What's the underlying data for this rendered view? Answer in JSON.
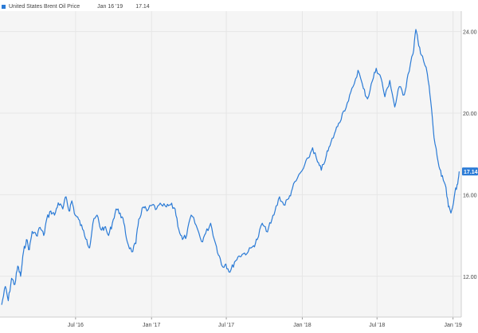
{
  "legend": {
    "series_name": "United States Brent Oil Price",
    "date": "Jan 16 '19",
    "value": "17.14"
  },
  "colors": {
    "line": "#2b7bd6",
    "plot_background": "#f5f5f5",
    "grid": "#e6e6e6",
    "axis_text": "#444444",
    "current_label_bg": "#2b7bd6"
  },
  "chart_data": {
    "type": "line",
    "title": "",
    "xlabel": "",
    "ylabel": "",
    "ylim": [
      10,
      25
    ],
    "yticks": [
      "12.00",
      "16.00",
      "20.00",
      "24.00"
    ],
    "xticks": [
      {
        "label": "Jul '16",
        "date": "2016-07-01"
      },
      {
        "label": "Jan '17",
        "date": "2017-01-01"
      },
      {
        "label": "Jul '17",
        "date": "2017-07-01"
      },
      {
        "label": "Jan '18",
        "date": "2018-01-01"
      },
      {
        "label": "Jul '18",
        "date": "2018-07-01"
      },
      {
        "label": "Jan '19",
        "date": "2019-01-01"
      }
    ],
    "grid": true,
    "current_value_label": "17.14",
    "series": [
      {
        "name": "United States Brent Oil Price",
        "points": [
          [
            "2016-01-04",
            10.6
          ],
          [
            "2016-01-13",
            11.5
          ],
          [
            "2016-01-20",
            10.8
          ],
          [
            "2016-01-28",
            11.9
          ],
          [
            "2016-02-05",
            11.6
          ],
          [
            "2016-02-12",
            12.5
          ],
          [
            "2016-02-19",
            12.0
          ],
          [
            "2016-02-26",
            13.2
          ],
          [
            "2016-03-04",
            13.8
          ],
          [
            "2016-03-11",
            13.3
          ],
          [
            "2016-03-18",
            14.2
          ],
          [
            "2016-03-28",
            14.0
          ],
          [
            "2016-04-06",
            14.4
          ],
          [
            "2016-04-15",
            14.0
          ],
          [
            "2016-04-22",
            14.8
          ],
          [
            "2016-05-02",
            15.2
          ],
          [
            "2016-05-11",
            15.0
          ],
          [
            "2016-05-20",
            15.6
          ],
          [
            "2016-05-31",
            15.3
          ],
          [
            "2016-06-08",
            15.9
          ],
          [
            "2016-06-15",
            15.2
          ],
          [
            "2016-06-22",
            15.7
          ],
          [
            "2016-06-30",
            15.0
          ],
          [
            "2016-07-08",
            14.8
          ],
          [
            "2016-07-18",
            14.3
          ],
          [
            "2016-07-28",
            13.8
          ],
          [
            "2016-08-04",
            13.4
          ],
          [
            "2016-08-12",
            14.6
          ],
          [
            "2016-08-22",
            15.0
          ],
          [
            "2016-08-31",
            14.3
          ],
          [
            "2016-09-09",
            14.4
          ],
          [
            "2016-09-19",
            14.0
          ],
          [
            "2016-09-28",
            14.6
          ],
          [
            "2016-10-07",
            15.3
          ],
          [
            "2016-10-17",
            15.1
          ],
          [
            "2016-10-26",
            14.6
          ],
          [
            "2016-11-03",
            13.7
          ],
          [
            "2016-11-14",
            13.2
          ],
          [
            "2016-11-24",
            13.6
          ],
          [
            "2016-12-01",
            14.8
          ],
          [
            "2016-12-12",
            15.4
          ],
          [
            "2016-12-21",
            15.2
          ],
          [
            "2017-01-03",
            15.5
          ],
          [
            "2017-01-13",
            15.3
          ],
          [
            "2017-01-25",
            15.5
          ],
          [
            "2017-02-06",
            15.4
          ],
          [
            "2017-02-16",
            15.5
          ],
          [
            "2017-02-27",
            15.3
          ],
          [
            "2017-03-08",
            14.3
          ],
          [
            "2017-03-17",
            13.8
          ],
          [
            "2017-03-27",
            14.0
          ],
          [
            "2017-04-07",
            15.0
          ],
          [
            "2017-04-19",
            14.5
          ],
          [
            "2017-05-02",
            13.7
          ],
          [
            "2017-05-12",
            14.1
          ],
          [
            "2017-05-24",
            14.6
          ],
          [
            "2017-06-05",
            13.6
          ],
          [
            "2017-06-14",
            13.0
          ],
          [
            "2017-06-21",
            12.5
          ],
          [
            "2017-06-30",
            12.6
          ],
          [
            "2017-07-10",
            12.2
          ],
          [
            "2017-07-21",
            12.7
          ],
          [
            "2017-08-01",
            13.0
          ],
          [
            "2017-08-11",
            13.1
          ],
          [
            "2017-08-23",
            13.2
          ],
          [
            "2017-09-05",
            13.5
          ],
          [
            "2017-09-14",
            13.8
          ],
          [
            "2017-09-26",
            14.6
          ],
          [
            "2017-10-06",
            14.2
          ],
          [
            "2017-10-17",
            14.6
          ],
          [
            "2017-10-27",
            15.2
          ],
          [
            "2017-11-07",
            15.9
          ],
          [
            "2017-11-17",
            15.5
          ],
          [
            "2017-11-29",
            15.8
          ],
          [
            "2017-12-08",
            16.3
          ],
          [
            "2017-12-20",
            16.8
          ],
          [
            "2018-01-04",
            17.3
          ],
          [
            "2018-01-16",
            17.8
          ],
          [
            "2018-01-26",
            18.3
          ],
          [
            "2018-02-07",
            17.6
          ],
          [
            "2018-02-16",
            17.2
          ],
          [
            "2018-02-28",
            17.9
          ],
          [
            "2018-03-09",
            18.4
          ],
          [
            "2018-03-20",
            19.0
          ],
          [
            "2018-03-30",
            19.5
          ],
          [
            "2018-04-11",
            20.1
          ],
          [
            "2018-04-23",
            20.6
          ],
          [
            "2018-05-04",
            21.3
          ],
          [
            "2018-05-16",
            22.1
          ],
          [
            "2018-05-29",
            21.2
          ],
          [
            "2018-06-08",
            20.7
          ],
          [
            "2018-06-20",
            21.6
          ],
          [
            "2018-06-29",
            22.2
          ],
          [
            "2018-07-11",
            21.7
          ],
          [
            "2018-07-20",
            20.8
          ],
          [
            "2018-08-01",
            21.6
          ],
          [
            "2018-08-13",
            20.3
          ],
          [
            "2018-08-24",
            21.3
          ],
          [
            "2018-09-05",
            20.9
          ],
          [
            "2018-09-14",
            21.9
          ],
          [
            "2018-09-26",
            22.9
          ],
          [
            "2018-10-03",
            24.1
          ],
          [
            "2018-10-10",
            23.3
          ],
          [
            "2018-10-19",
            22.8
          ],
          [
            "2018-10-31",
            21.9
          ],
          [
            "2018-11-08",
            20.6
          ],
          [
            "2018-11-16",
            18.8
          ],
          [
            "2018-11-26",
            17.6
          ],
          [
            "2018-12-04",
            16.9
          ],
          [
            "2018-12-13",
            16.5
          ],
          [
            "2018-12-21",
            15.4
          ],
          [
            "2018-12-27",
            15.1
          ],
          [
            "2019-01-04",
            15.9
          ],
          [
            "2019-01-11",
            16.5
          ],
          [
            "2019-01-16",
            17.14
          ]
        ]
      }
    ]
  }
}
